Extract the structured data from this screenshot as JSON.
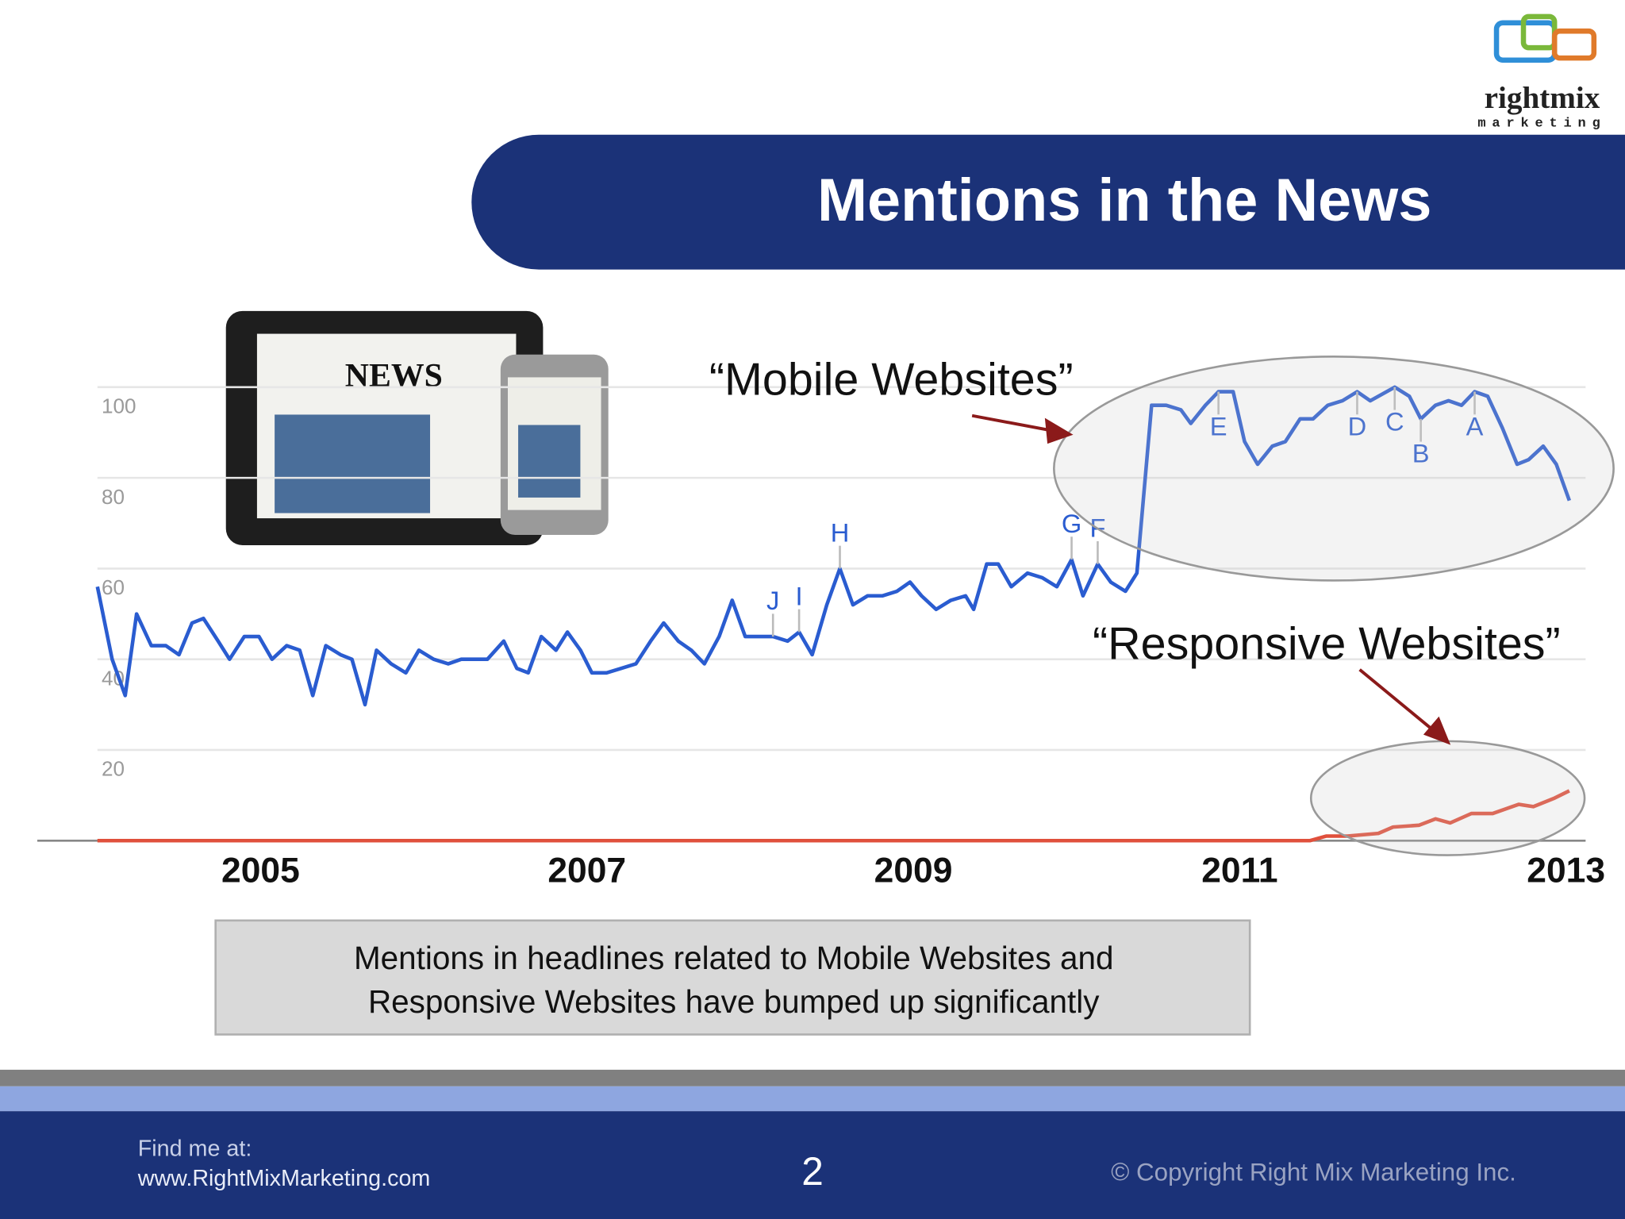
{
  "logo": {
    "name": "rightmix",
    "tagline": "marketing"
  },
  "image_text": "NEWS",
  "chart_data": {
    "type": "line",
    "title": "Mentions in the News",
    "xlim": [
      2004,
      2013.12
    ],
    "xticks": [
      2005,
      2007,
      2009,
      2011,
      2013
    ],
    "ylim": [
      0,
      100
    ],
    "yticks": [
      20,
      40,
      60,
      80,
      100
    ],
    "grid": true,
    "series": [
      {
        "name": "“Mobile Websites”",
        "color": "#2a5cd0",
        "x": [
          2004.0,
          2004.09,
          2004.17,
          2004.24,
          2004.33,
          2004.42,
          2004.5,
          2004.58,
          2004.65,
          2004.74,
          2004.81,
          2004.9,
          2004.99,
          2005.07,
          2005.16,
          2005.24,
          2005.32,
          2005.4,
          2005.49,
          2005.56,
          2005.64,
          2005.71,
          2005.8,
          2005.89,
          2005.97,
          2006.06,
          2006.15,
          2006.23,
          2006.39,
          2006.49,
          2006.57,
          2006.64,
          2006.72,
          2006.81,
          2006.88,
          2006.96,
          2007.03,
          2007.12,
          2007.21,
          2007.3,
          2007.39,
          2007.47,
          2007.56,
          2007.64,
          2007.72,
          2007.81,
          2007.89,
          2007.97,
          2008.14,
          2008.23,
          2008.3,
          2008.38,
          2008.47,
          2008.55,
          2008.63,
          2008.72,
          2008.81,
          2008.9,
          2008.98,
          2009.05,
          2009.14,
          2009.23,
          2009.32,
          2009.37,
          2009.45,
          2009.52,
          2009.6,
          2009.7,
          2009.79,
          2009.88,
          2009.97,
          2010.04,
          2010.13,
          2010.21,
          2010.3,
          2010.37,
          2010.46,
          2010.55,
          2010.64,
          2010.7,
          2010.79,
          2010.87,
          2010.96,
          2011.03,
          2011.11,
          2011.2,
          2011.28,
          2011.37,
          2011.45,
          2011.54,
          2011.63,
          2011.72,
          2011.8,
          2011.95,
          2012.04,
          2012.11,
          2012.2,
          2012.28,
          2012.36,
          2012.44,
          2012.52,
          2012.61,
          2012.7,
          2012.77,
          2012.86,
          2012.94,
          2013.02
        ],
        "values": [
          56,
          40,
          32,
          50,
          43,
          43,
          41,
          48,
          49,
          44,
          40,
          45,
          45,
          40,
          43,
          42,
          32,
          43,
          41,
          40,
          30,
          42,
          39,
          37,
          42,
          40,
          39,
          40,
          40,
          44,
          38,
          37,
          45,
          42,
          46,
          42,
          37,
          37,
          38,
          39,
          44,
          48,
          44,
          42,
          39,
          45,
          53,
          45,
          45,
          44,
          46,
          41,
          52,
          60,
          52,
          54,
          54,
          55,
          57,
          54,
          51,
          53,
          54,
          51,
          61,
          61,
          56,
          59,
          58,
          56,
          62,
          54,
          61,
          57,
          55,
          59,
          96,
          96,
          95,
          92,
          96,
          99,
          99,
          88,
          83,
          87,
          88,
          93,
          93,
          96,
          97,
          99,
          97,
          100,
          98,
          93,
          96,
          97,
          96,
          99,
          98,
          91,
          83,
          84,
          87,
          83,
          75
        ]
      },
      {
        "name": "“Responsive Websites”",
        "color": "#e0503c",
        "x": [
          2004.0,
          2011.43,
          2011.53,
          2011.66,
          2011.85,
          2011.94,
          2012.1,
          2012.2,
          2012.29,
          2012.42,
          2012.55,
          2012.71,
          2012.8,
          2012.93,
          2013.02
        ],
        "values": [
          0,
          0,
          1,
          1,
          1.6,
          3,
          3.4,
          4.8,
          3.9,
          6,
          6,
          8,
          7.5,
          9.4,
          11
        ]
      }
    ],
    "annotations": [
      {
        "text": "J",
        "x": 2008.14,
        "y": 45
      },
      {
        "text": "I",
        "x": 2008.3,
        "y": 46
      },
      {
        "text": "H",
        "x": 2008.55,
        "y": 60
      },
      {
        "text": "G",
        "x": 2009.97,
        "y": 62
      },
      {
        "text": "F",
        "x": 2010.13,
        "y": 61
      },
      {
        "text": "E",
        "x": 2010.87,
        "y": 99
      },
      {
        "text": "D",
        "x": 2011.72,
        "y": 99
      },
      {
        "text": "C",
        "x": 2011.95,
        "y": 100
      },
      {
        "text": "B",
        "x": 2012.11,
        "y": 93
      },
      {
        "text": "A",
        "x": 2012.44,
        "y": 99
      }
    ]
  },
  "caption": [
    "Mentions in headlines related to Mobile Websites and",
    "Responsive Websites have bumped up significantly"
  ],
  "footer": {
    "find_label": "Find me at:",
    "url": "www.RightMixMarketing.com",
    "page_number": "2",
    "copyright": "© Copyright Right Mix Marketing Inc."
  }
}
